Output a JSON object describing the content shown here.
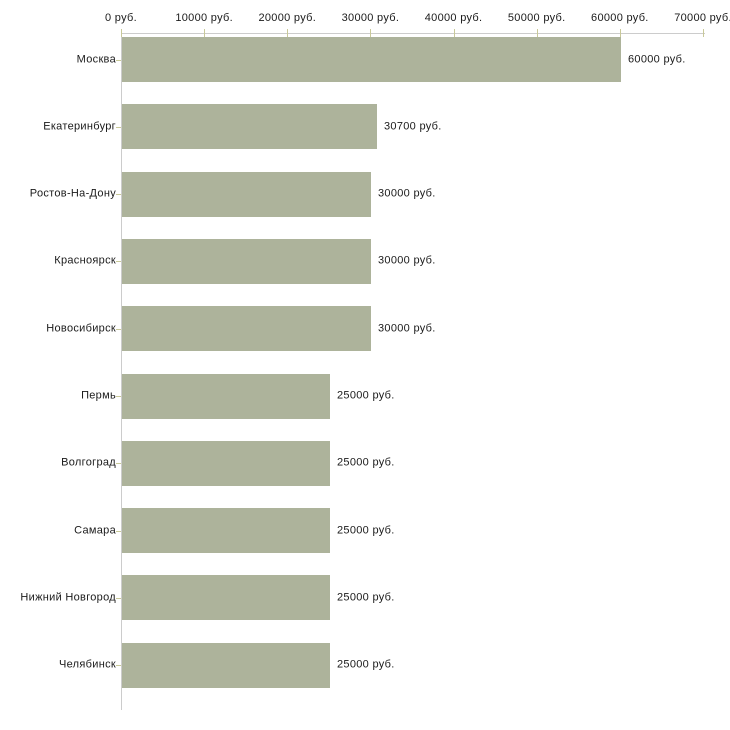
{
  "chart_data": {
    "type": "bar",
    "orientation": "horizontal",
    "categories": [
      "Москва",
      "Екатеринбург",
      "Ростов-На-Дону",
      "Красноярск",
      "Новосибирск",
      "Пермь",
      "Волгоград",
      "Самара",
      "Нижний Новгород",
      "Челябинск"
    ],
    "values": [
      60000,
      30700,
      30000,
      30000,
      30000,
      25000,
      25000,
      25000,
      25000,
      25000
    ],
    "value_labels": [
      "60000 руб.",
      "30700 руб.",
      "30000 руб.",
      "30000 руб.",
      "30000 руб.",
      "25000 руб.",
      "25000 руб.",
      "25000 руб.",
      "25000 руб.",
      "25000 руб."
    ],
    "unit": "руб.",
    "x_axis": {
      "position": "top",
      "min": 0,
      "max": 70000,
      "tick_step": 10000,
      "ticks": [
        0,
        10000,
        20000,
        30000,
        40000,
        50000,
        60000,
        70000
      ],
      "tick_labels": [
        "0 руб.",
        "10000 руб.",
        "20000 руб.",
        "30000 руб.",
        "40000 руб.",
        "50000 руб.",
        "60000 руб.",
        "70000 руб."
      ]
    },
    "grid": "off",
    "legend": "none",
    "colors": {
      "bar": "#adb39b",
      "axis_line": "#cccccc",
      "tick_mark": "#c9c999",
      "text": "#1a1a1a",
      "background": "#ffffff"
    }
  }
}
